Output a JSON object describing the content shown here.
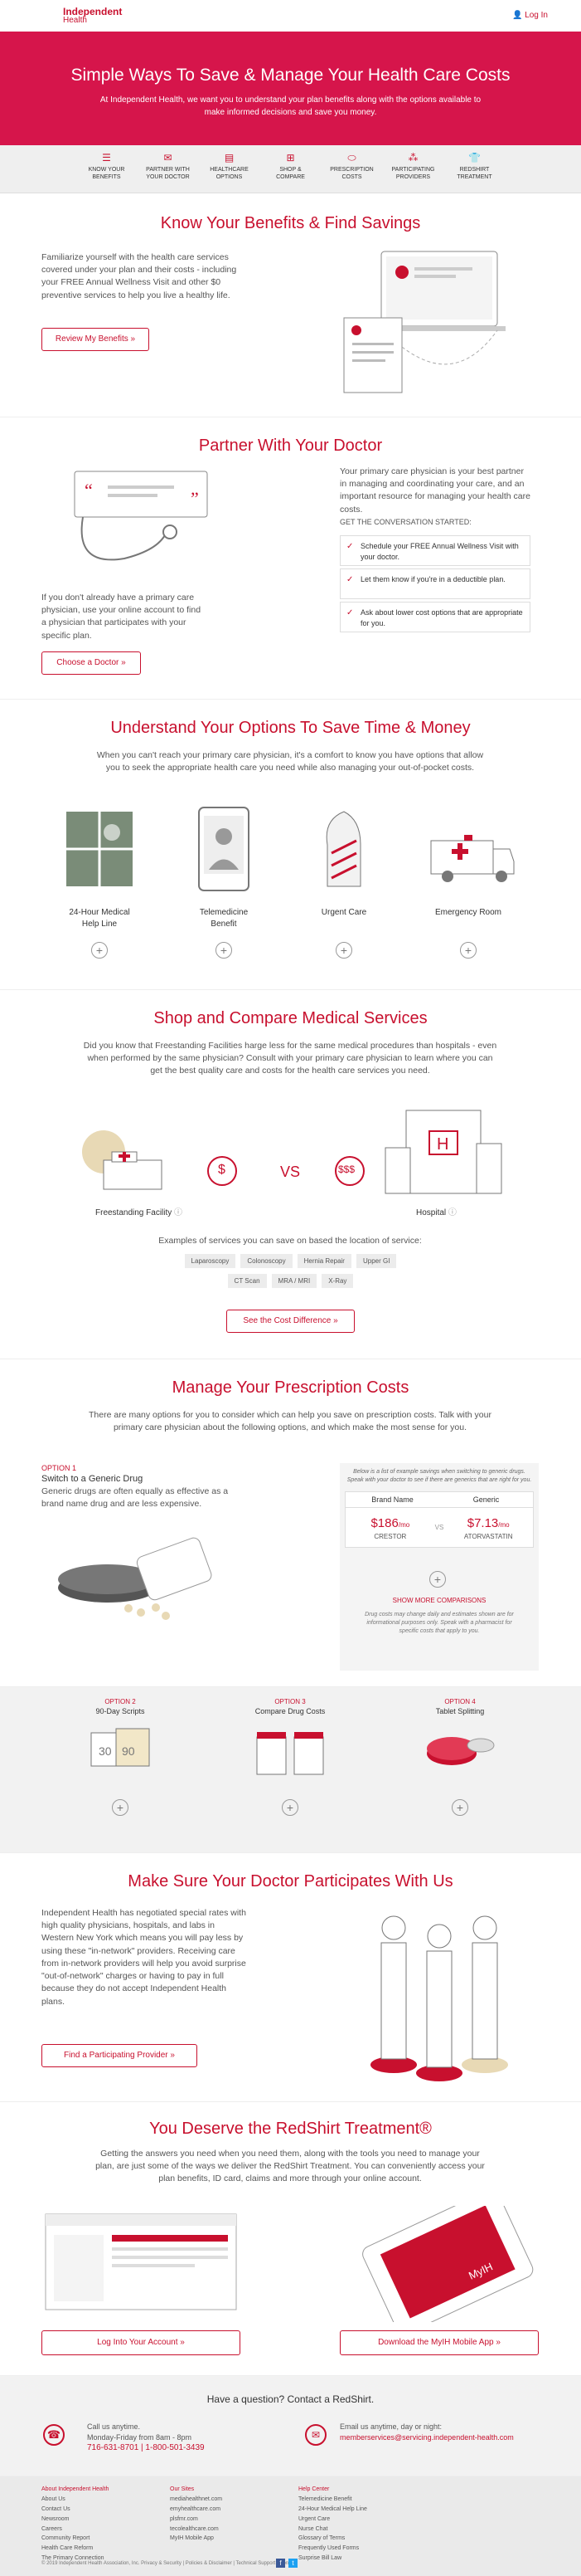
{
  "header": {
    "logo_line1": "Independent",
    "logo_line2": "Health",
    "login": "Log In"
  },
  "hero": {
    "title": "Simple Ways To Save & Manage Your Health Care Costs",
    "text": "At Independent Health, we want you to understand your plan benefits along with the options available to make informed decisions and save you money."
  },
  "tabs": [
    {
      "label": "Know Your Benefits"
    },
    {
      "label": "Partner With Your Doctor"
    },
    {
      "label": "Healthcare Options"
    },
    {
      "label": "Shop & Compare"
    },
    {
      "label": "Prescription Costs"
    },
    {
      "label": "Participating Providers"
    },
    {
      "label": "RedShirt Treatment"
    }
  ],
  "benefits": {
    "title": "Know Your Benefits & Find Savings",
    "text": "Familiarize yourself with the health care services covered under your plan and their costs - including your FREE Annual Wellness Visit and other $0 preventive services to help you live a healthy life.",
    "button": "Review My Benefits »"
  },
  "doctor": {
    "title": "Partner With Your Doctor",
    "right_text": "Your primary care physician is your best partner in managing and coordinating your care, and an important resource for managing your health care costs.",
    "convo": "GET THE CONVERSATION STARTED:",
    "checks": [
      "Schedule your FREE Annual Wellness Visit with your doctor.",
      "Let them know if you're in a deductible plan.",
      "Ask about lower cost options that are appropriate for you."
    ],
    "left_text": "If you don't already have a primary care physician, use your online account to find a physician that participates with your specific plan.",
    "button": "Choose a Doctor »"
  },
  "options": {
    "title": "Understand Your Options To Save Time & Money",
    "text": "When you can't reach your primary care physician, it's a comfort to know you have options that allow you to seek the appropriate health care you need while also managing your out-of-pocket costs.",
    "items": [
      "24-Hour Medical Help Line",
      "Telemedicine Benefit",
      "Urgent Care",
      "Emergency Room"
    ]
  },
  "shop": {
    "title": "Shop and Compare Medical Services",
    "text": "Did you know that Freestanding Facilities harge less for the same medical procedures than hospitals - even when performed by the same physician? Consult with your primary care physician to learn where you can get the best quality care and costs for the health care services you need.",
    "freestanding": "Freestanding Facility",
    "hospital": "Hospital",
    "vs": "VS",
    "dollar1": "$",
    "dollar2": "$$$",
    "examples": "Examples of services you can save on based the location of service:",
    "services_row1": [
      "Laparoscopy",
      "Colonoscopy",
      "Hernia Repair",
      "Upper GI"
    ],
    "services_row2": [
      "CT Scan",
      "MRA / MRI",
      "X-Ray"
    ],
    "button": "See the Cost Difference »"
  },
  "rx": {
    "title": "Manage Your Prescription Costs",
    "text": "There are many options for you to consider which can help you save on prescription costs. Talk with your primary care physician about the following options, and which make the most sense for you.",
    "opt1_label": "OPTION 1",
    "opt1_title": "Switch to a Generic Drug",
    "opt1_text": "Generic drugs are often equally as effective as a brand name drug and are less expensive.",
    "table_note": "Below is a list of example savings when switching to generic drugs. Speak with your doctor to see if there are generics that are right for you.",
    "brand_hdr": "Brand Name",
    "generic_hdr": "Generic",
    "brand_price": "$186",
    "brand_unit": "/mo",
    "brand_name": "CRESTOR",
    "generic_price": "$7.13",
    "generic_unit": "/mo",
    "generic_name": "ATORVASTATIN",
    "vs": "VS",
    "more": "SHOW MORE COMPARISONS",
    "disclaimer": "Drug costs may change daily and estimates shown are for informational purposes only. Speak with a pharmacist for specific costs that apply to you.",
    "opts": [
      {
        "label": "OPTION 2",
        "title": "90-Day Scripts"
      },
      {
        "label": "OPTION 3",
        "title": "Compare Drug Costs"
      },
      {
        "label": "OPTION 4",
        "title": "Tablet Splitting"
      }
    ]
  },
  "provider": {
    "title": "Make Sure Your Doctor Participates With Us",
    "text": "Independent Health has negotiated special rates with high quality physicians, hospitals, and labs in Western New York which means you will pay less by using these \"in-network\" providers. Receiving care from in-network providers will help you avoid surprise \"out-of-network\" charges or having to pay in full because they do not accept Independent Health plans.",
    "button": "Find a Participating Provider »"
  },
  "redshirt": {
    "title": "You Deserve the RedShirt Treatment®",
    "text": "Getting the answers you need when you need them, along with the tools you need to manage your plan, are just some of the ways we deliver the RedShirt Treatment. You can conveniently access your plan benefits, ID card, claims and more through your online account.",
    "btn_left": "Log Into Your Account »",
    "btn_right": "Download the MyIH Mobile App »",
    "app_label": "MyIH"
  },
  "contact": {
    "title": "Have a question? Contact a RedShirt.",
    "call": "Call us anytime.",
    "hours": "Monday-Friday from 8am - 8pm",
    "phones": "716-631-8701 | 1-800-501-3439",
    "email_l1": "Email us anytime, day or night:",
    "email": "memberservices@servicing.independent-health.com"
  },
  "footer": {
    "col1_title": "About Independent Health",
    "col1": [
      "About Us",
      "Contact Us",
      "Newsroom",
      "Careers",
      "Community Report",
      "Health Care Reform",
      "The Primary Connection"
    ],
    "col2_title": "Our Sites",
    "col2": [
      "mediahealthnet.com",
      "emyhealthcare.com",
      "plsfmr.com",
      "tecolealthcare.com",
      "MyIH Mobile App"
    ],
    "col3_title": "Help Center",
    "col3": [
      "Telemedicine Benefit",
      "24-Hour Medical Help Line",
      "Urgent Care",
      "Nurse Chat",
      "Glossary of Terms",
      "Frequently Used Forms",
      "Surprise Bill Law"
    ],
    "copyright": "© 2019 Independent Health Association, Inc. Privacy & Security | Policies & Disclaimer | Technical Support | Nondisc"
  },
  "colors": {
    "brand": "#c8102e",
    "hero": "#d6154b"
  }
}
